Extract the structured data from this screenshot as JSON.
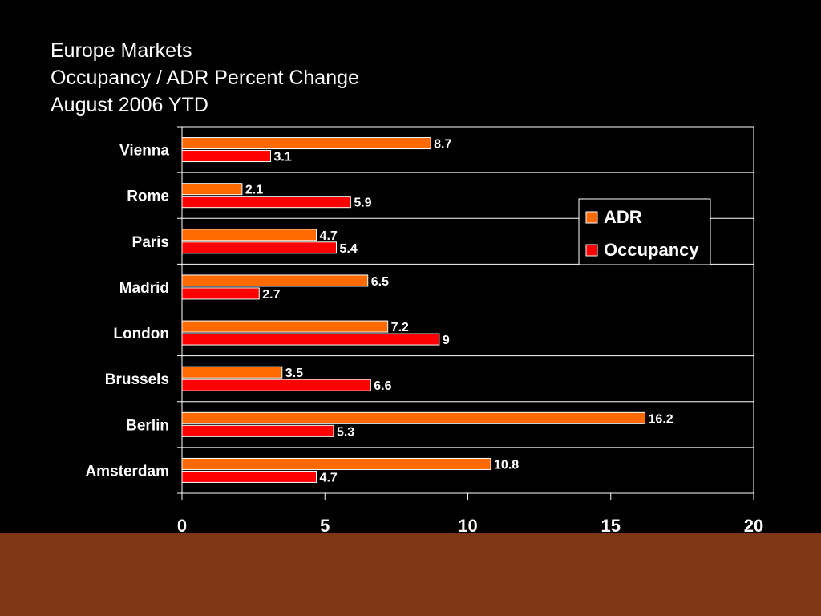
{
  "chart_data": {
    "type": "bar",
    "orientation": "horizontal",
    "title": [
      "Europe Markets",
      "Occupancy / ADR Percent Change",
      "August 2006 YTD"
    ],
    "categories": [
      "Vienna",
      "Rome",
      "Paris",
      "Madrid",
      "London",
      "Brussels",
      "Berlin",
      "Amsterdam"
    ],
    "series": [
      {
        "name": "ADR",
        "color": "#ff6a00",
        "values": [
          8.7,
          2.1,
          4.7,
          6.5,
          7.2,
          3.5,
          16.2,
          10.8
        ]
      },
      {
        "name": "Occupancy",
        "color": "#ff0000",
        "values": [
          3.1,
          5.9,
          5.4,
          2.7,
          9,
          6.6,
          5.3,
          4.7
        ]
      }
    ],
    "xlim": [
      0,
      20
    ],
    "xticks": [
      "0",
      "5",
      "10",
      "15",
      "20"
    ],
    "grid": true,
    "legend_position": "top-right",
    "xlabel": "",
    "ylabel": ""
  },
  "colors": {
    "background": "#000000",
    "footer_band": "#7f3614",
    "axis": "#ffffff"
  }
}
